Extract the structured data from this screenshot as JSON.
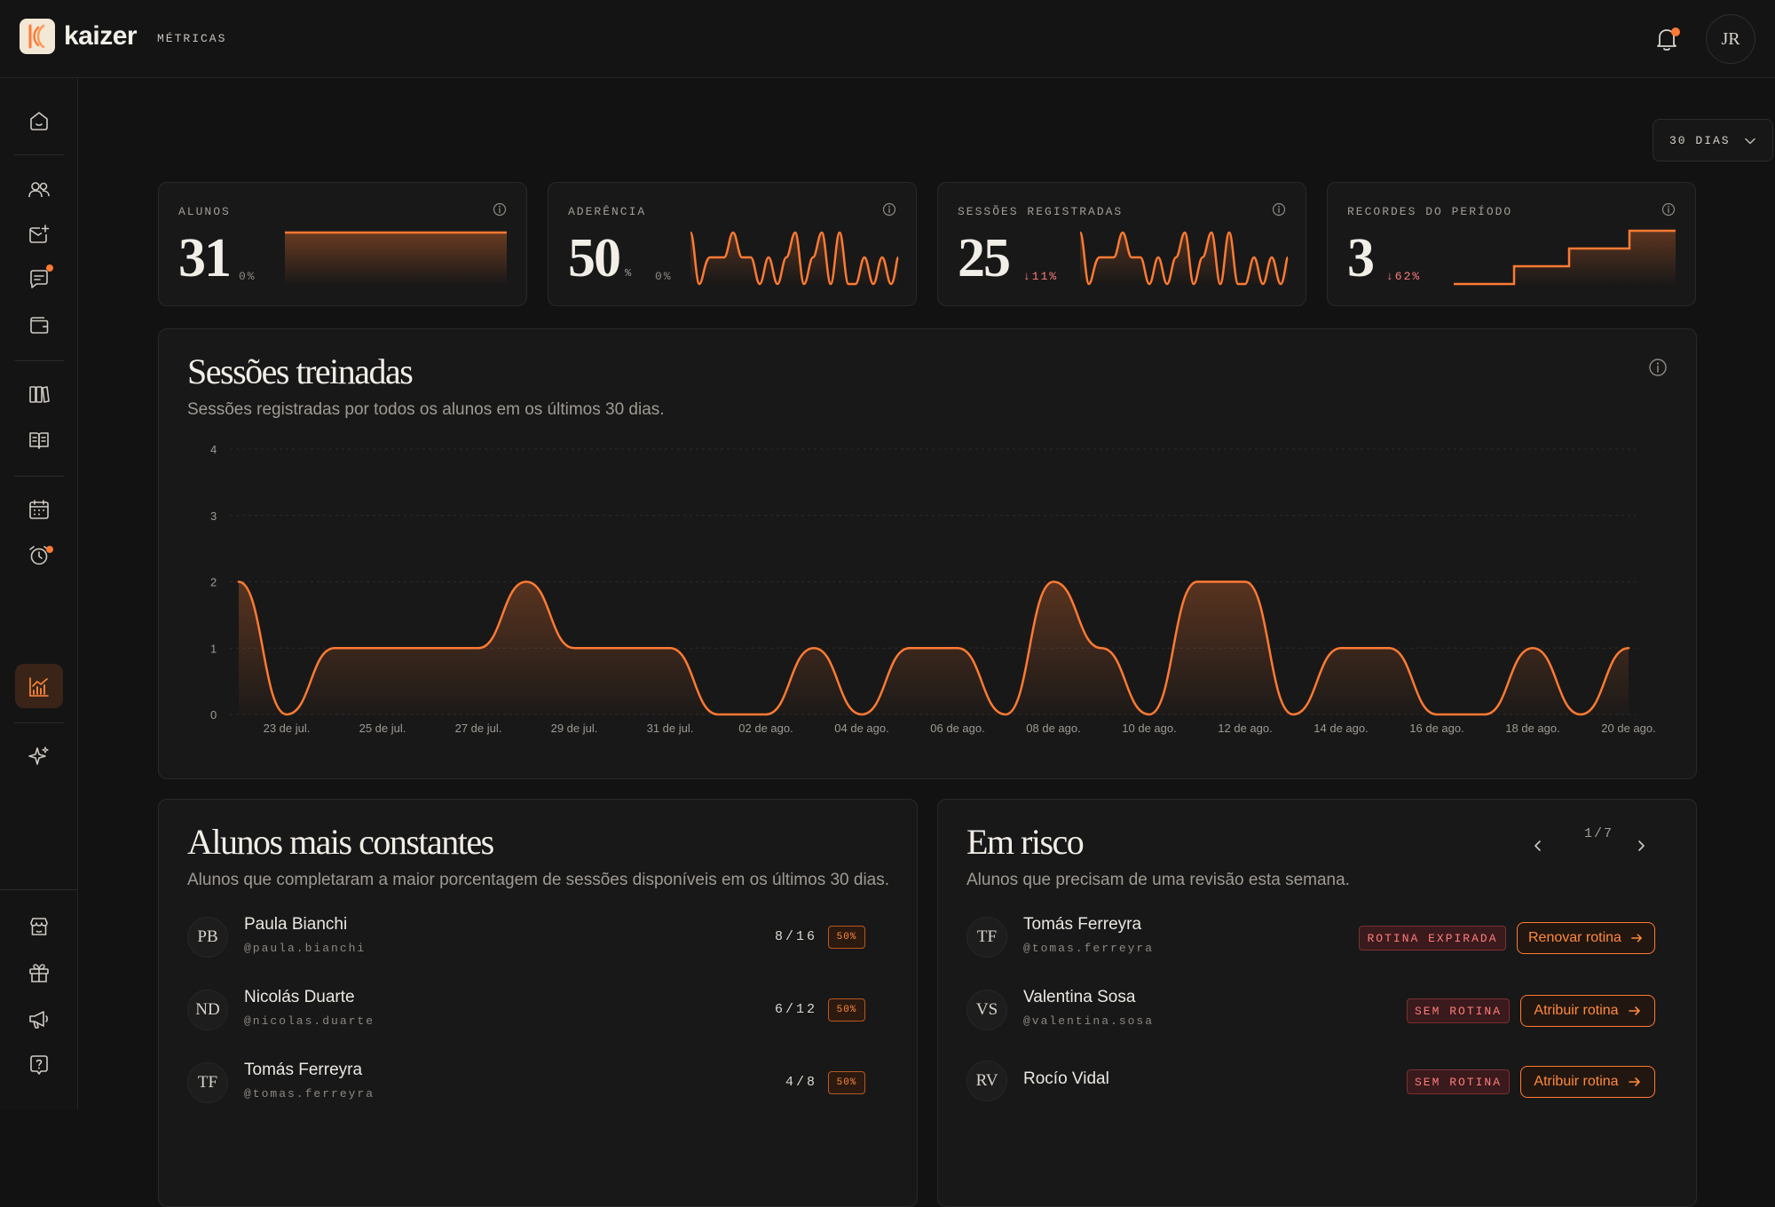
{
  "app": {
    "brand": "kaizer",
    "page_label": "MÉTRICAS",
    "user_initials": "JR"
  },
  "icons": {
    "logo": "kaizer-logo-icon",
    "bell": "bell-icon",
    "sidebar": [
      "home-icon",
      "users-icon",
      "mail-plus-icon",
      "chat-icon",
      "wallet-icon",
      "library-icon",
      "book-icon",
      "calendar-icon",
      "alarm-icon",
      "chart-icon",
      "sparkles-icon",
      "store-icon",
      "gift-icon",
      "megaphone-icon",
      "help-icon"
    ]
  },
  "colors": {
    "accent": "#ff7a33",
    "danger": "#ff7c7c",
    "bg": "#121212",
    "card": "#181818"
  },
  "range_selector": {
    "label": "30 DIAS"
  },
  "kpis": [
    {
      "label": "ALUNOS",
      "value": "31",
      "unit": "",
      "delta": "0%",
      "delta_dir": "none"
    },
    {
      "label": "ADERÊNCIA",
      "value": "50",
      "unit": "%",
      "delta": "0%",
      "delta_dir": "none"
    },
    {
      "label": "SESSÕES REGISTRADAS",
      "value": "25",
      "unit": "",
      "delta": "↓11%",
      "delta_dir": "down"
    },
    {
      "label": "RECORDES DO PERÍODO",
      "value": "3",
      "unit": "",
      "delta": "↓62%",
      "delta_dir": "down"
    }
  ],
  "sessions": {
    "title": "Sessões treinadas",
    "subtitle": "Sessões registradas por todos os alunos em os últimos 30 dias."
  },
  "chart_data": {
    "type": "area",
    "title": "Sessões treinadas",
    "xlabel": "",
    "ylabel": "",
    "ylim": [
      0,
      4
    ],
    "y_ticks": [
      "0",
      "1",
      "2",
      "3",
      "4"
    ],
    "x_tick_labels": [
      "23 de jul.",
      "25 de jul.",
      "27 de jul.",
      "29 de jul.",
      "31 de jul.",
      "02 de ago.",
      "04 de ago.",
      "06 de ago.",
      "08 de ago.",
      "10 de ago.",
      "12 de ago.",
      "14 de ago.",
      "16 de ago.",
      "18 de ago.",
      "20 de ago."
    ],
    "x": [
      "22 de jul.",
      "23 de jul.",
      "24 de jul.",
      "25 de jul.",
      "26 de jul.",
      "27 de jul.",
      "28 de jul.",
      "29 de jul.",
      "30 de jul.",
      "31 de jul.",
      "01 de ago.",
      "02 de ago.",
      "03 de ago.",
      "04 de ago.",
      "05 de ago.",
      "06 de ago.",
      "07 de ago.",
      "08 de ago.",
      "09 de ago.",
      "10 de ago.",
      "11 de ago.",
      "12 de ago.",
      "13 de ago.",
      "14 de ago.",
      "15 de ago.",
      "16 de ago.",
      "17 de ago.",
      "18 de ago.",
      "19 de ago.",
      "20 de ago."
    ],
    "values": [
      2,
      0,
      1,
      1,
      1,
      1,
      2,
      1,
      1,
      1,
      0,
      0,
      1,
      0,
      1,
      1,
      0,
      2,
      1,
      0,
      2,
      2,
      0,
      1,
      1,
      0,
      0,
      1,
      0,
      1
    ],
    "grid": true,
    "legend": "none"
  },
  "constant": {
    "title": "Alunos mais constantes",
    "subtitle": "Alunos que completaram a maior porcentagem de sessões disponíveis em os últimos 30 dias.",
    "rows": [
      {
        "initials": "PB",
        "name": "Paula Bianchi",
        "handle": "@paula.bianchi",
        "count": "8/16",
        "pct": "50%"
      },
      {
        "initials": "ND",
        "name": "Nicolás Duarte",
        "handle": "@nicolas.duarte",
        "count": "6/12",
        "pct": "50%"
      },
      {
        "initials": "TF",
        "name": "Tomás Ferreyra",
        "handle": "@tomas.ferreyra",
        "count": "4/8",
        "pct": "50%"
      }
    ]
  },
  "risk": {
    "title": "Em risco",
    "subtitle": "Alunos que precisam de uma revisão esta semana.",
    "pager": "1/7",
    "rows": [
      {
        "initials": "TF",
        "name": "Tomás Ferreyra",
        "handle": "@tomas.ferreyra",
        "badge": "ROTINA EXPIRADA",
        "action": "Renovar rotina"
      },
      {
        "initials": "VS",
        "name": "Valentina Sosa",
        "handle": "@valentina.sosa",
        "badge": "SEM ROTINA",
        "action": "Atribuir rotina"
      },
      {
        "initials": "RV",
        "name": "Rocío Vidal",
        "handle": "",
        "badge": "SEM ROTINA",
        "action": "Atribuir rotina"
      }
    ]
  }
}
